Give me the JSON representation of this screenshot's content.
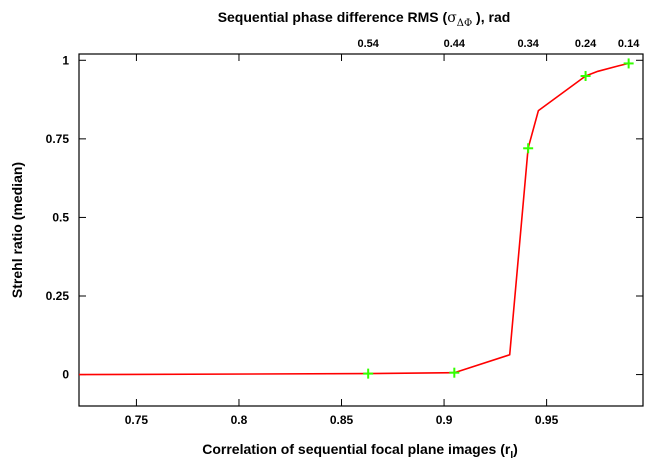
{
  "chart_data": {
    "type": "line",
    "title": "",
    "top_axis_title": "Sequential phase difference RMS (",
    "top_axis_symbol": "σ",
    "top_axis_subscript": "ΔΦ",
    "top_axis_suffix": "  ), rad",
    "xlabel": "Correlation of sequential focal plane images (r",
    "xlabel_subscript": "I",
    "xlabel_suffix": ")",
    "ylabel": "Strehl ratio (median)",
    "xlim": [
      0.722,
      0.997
    ],
    "ylim": [
      -0.1,
      1.02
    ],
    "x_ticks": [
      {
        "value": 0.75,
        "label": "0.75"
      },
      {
        "value": 0.8,
        "label": "0.8"
      },
      {
        "value": 0.85,
        "label": "0.85"
      },
      {
        "value": 0.9,
        "label": "0.9"
      },
      {
        "value": 0.95,
        "label": "0.95"
      }
    ],
    "y_ticks": [
      {
        "value": 0,
        "label": "0"
      },
      {
        "value": 0.25,
        "label": "0.25"
      },
      {
        "value": 0.5,
        "label": "0.5"
      },
      {
        "value": 0.75,
        "label": "0.75"
      },
      {
        "value": 1,
        "label": "1"
      }
    ],
    "top_ticks": [
      {
        "x": 0.863,
        "label": "0.54"
      },
      {
        "x": 0.905,
        "label": "0.44"
      },
      {
        "x": 0.941,
        "label": "0.34"
      },
      {
        "x": 0.969,
        "label": "0.24"
      },
      {
        "x": 0.99,
        "label": "0.14"
      }
    ],
    "series": [
      {
        "color": "#ff0000",
        "x": [
          0.722,
          0.863,
          0.905,
          0.932,
          0.941,
          0.946,
          0.969,
          0.975,
          0.985,
          0.99
        ],
        "y": [
          0.0,
          0.003,
          0.006,
          0.063,
          0.72,
          0.84,
          0.95,
          0.965,
          0.982,
          0.99
        ]
      }
    ],
    "markers": {
      "color": "#33ff00",
      "shape": "plus",
      "x": [
        0.863,
        0.905,
        0.941,
        0.969,
        0.99
      ],
      "y": [
        0.003,
        0.006,
        0.72,
        0.95,
        0.99
      ]
    },
    "grid": false,
    "legend": "none"
  }
}
